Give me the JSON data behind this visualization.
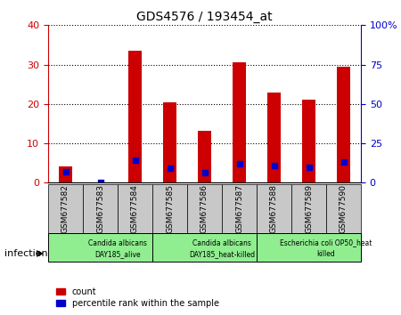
{
  "title": "GDS4576 / 193454_at",
  "samples": [
    "GSM677582",
    "GSM677583",
    "GSM677584",
    "GSM677585",
    "GSM677586",
    "GSM677587",
    "GSM677588",
    "GSM677589",
    "GSM677590"
  ],
  "counts": [
    4.2,
    0,
    33.5,
    20.5,
    13.2,
    30.5,
    23.0,
    21.2,
    29.5
  ],
  "percentile_ranks": [
    7.0,
    0,
    14.5,
    9.0,
    6.5,
    12.0,
    11.0,
    10.0,
    13.0
  ],
  "left_ylim": [
    0,
    40
  ],
  "right_ylim": [
    0,
    100
  ],
  "left_yticks": [
    0,
    10,
    20,
    30,
    40
  ],
  "right_yticks": [
    0,
    25,
    50,
    75,
    100
  ],
  "left_yticklabels": [
    "0",
    "10",
    "20",
    "30",
    "40"
  ],
  "right_yticklabels": [
    "0",
    "25",
    "50",
    "75",
    "100%"
  ],
  "bar_color": "#cc0000",
  "dot_color": "#0000cc",
  "groups": [
    {
      "label": "Candida albicans\nDAY185_alive",
      "start": 0,
      "end": 3,
      "color": "#90ee90"
    },
    {
      "label": "Candida albicans\nDAY185_heat-killed",
      "start": 3,
      "end": 6,
      "color": "#90ee90"
    },
    {
      "label": "Escherichia coli OP50_heat\nkilled",
      "start": 6,
      "end": 9,
      "color": "#90ee90"
    }
  ],
  "group_box_color": "#c8c8c8",
  "xlabel_infection": "infection",
  "legend_count_label": "count",
  "legend_percentile_label": "percentile rank within the sample",
  "bar_width": 0.4,
  "dot_size": 25
}
